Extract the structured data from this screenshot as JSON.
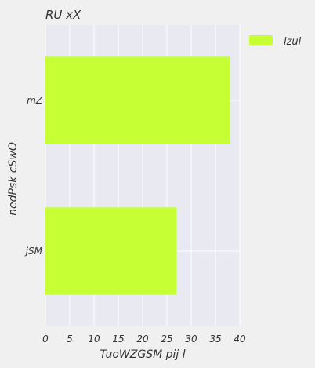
{
  "chart_data": {
    "type": "bar",
    "orientation": "horizontal",
    "title": "RU xX",
    "xlabel": "TuoWZGSM pij l",
    "ylabel": "nedPsk cSwO",
    "categories": [
      "mZ",
      "jSM"
    ],
    "series": [
      {
        "name": "lzul",
        "values": [
          38,
          27
        ],
        "color": "#c6ff33"
      }
    ],
    "xlim": [
      0,
      40
    ],
    "xticks": [
      "0",
      "5",
      "10",
      "15",
      "20",
      "25",
      "30",
      "35",
      "40"
    ],
    "grid": true,
    "legend_position": "top-right",
    "colors": {
      "plot_background": "#e9e9f1",
      "page_background": "#f0f0f0",
      "grid": "#ffffff",
      "text": "#333333"
    }
  }
}
